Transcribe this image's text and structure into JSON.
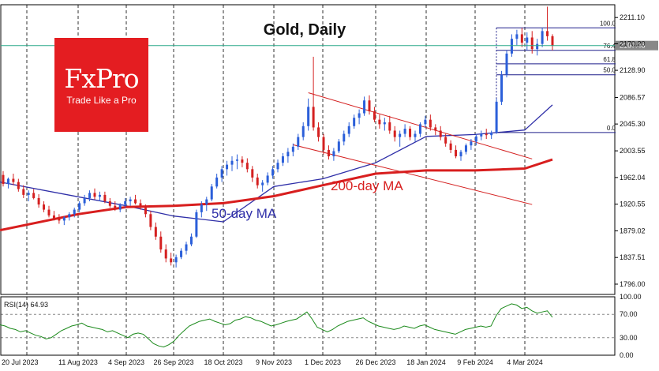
{
  "chart_data": [
    {
      "type": "candlestick",
      "title": "Gold, Daily",
      "y_ticks": [
        "2211.10",
        "2170.20",
        "2128.90",
        "2086.57",
        "2045.30",
        "2003.55",
        "1962.04",
        "1920.55",
        "1879.02",
        "1837.51",
        "1796.00"
      ],
      "ylim": [
        1780,
        2231
      ],
      "x_ticks": [
        "20 Jul 2023",
        "11 Aug 2023",
        "4 Sep 2023",
        "26 Sep 2023",
        "18 Oct 2023",
        "9 Nov 2023",
        "1 Dec 2023",
        "26 Dec 2023",
        "18 Jan 2024",
        "9 Feb 2024",
        "4 Mar 2024"
      ],
      "current_price": "2167.48",
      "grid": true,
      "series": [
        {
          "name": "50-day MA",
          "color": "#2f2fa8",
          "x": [
            "20 Jul 2023",
            "11 Aug 2023",
            "4 Sep 2023",
            "26 Sep 2023",
            "18 Oct 2023",
            "9 Nov 2023",
            "1 Dec 2023",
            "26 Dec 2023",
            "18 Jan 2024",
            "9 Feb 2024",
            "4 Mar 2024",
            "18 Mar 2024"
          ],
          "y": [
            1955,
            1932,
            1918,
            1902,
            1893,
            1948,
            1960,
            1985,
            2026,
            2029,
            2036,
            2075
          ]
        },
        {
          "name": "200-day MA",
          "color": "#d81e1e",
          "x": [
            "20 Jul 2023",
            "11 Aug 2023",
            "4 Sep 2023",
            "26 Sep 2023",
            "18 Oct 2023",
            "9 Nov 2023",
            "1 Dec 2023",
            "26 Dec 2023",
            "18 Jan 2024",
            "9 Feb 2024",
            "4 Mar 2024",
            "18 Mar 2024"
          ],
          "y": [
            1880,
            1905,
            1916,
            1918,
            1922,
            1933,
            1950,
            1968,
            1973,
            1973,
            1976,
            1990
          ]
        }
      ],
      "candles": [
        [
          1966,
          1972,
          1948,
          1952
        ],
        [
          1952,
          1962,
          1945,
          1960
        ],
        [
          1960,
          1968,
          1950,
          1955
        ],
        [
          1955,
          1960,
          1940,
          1944
        ],
        [
          1944,
          1950,
          1930,
          1935
        ],
        [
          1935,
          1942,
          1925,
          1938
        ],
        [
          1938,
          1944,
          1928,
          1930
        ],
        [
          1930,
          1936,
          1915,
          1920
        ],
        [
          1920,
          1925,
          1908,
          1912
        ],
        [
          1912,
          1918,
          1900,
          1903
        ],
        [
          1903,
          1910,
          1895,
          1898
        ],
        [
          1898,
          1905,
          1890,
          1895
        ],
        [
          1895,
          1902,
          1888,
          1900
        ],
        [
          1900,
          1908,
          1895,
          1905
        ],
        [
          1905,
          1915,
          1900,
          1912
        ],
        [
          1912,
          1925,
          1908,
          1922
        ],
        [
          1922,
          1935,
          1918,
          1930
        ],
        [
          1930,
          1942,
          1925,
          1938
        ],
        [
          1938,
          1945,
          1928,
          1932
        ],
        [
          1932,
          1940,
          1925,
          1935
        ],
        [
          1935,
          1940,
          1922,
          1925
        ],
        [
          1925,
          1930,
          1915,
          1918
        ],
        [
          1918,
          1925,
          1910,
          1912
        ],
        [
          1912,
          1922,
          1908,
          1920
        ],
        [
          1920,
          1930,
          1915,
          1925
        ],
        [
          1925,
          1932,
          1918,
          1928
        ],
        [
          1928,
          1935,
          1920,
          1922
        ],
        [
          1922,
          1928,
          1912,
          1915
        ],
        [
          1915,
          1920,
          1900,
          1905
        ],
        [
          1905,
          1910,
          1880,
          1885
        ],
        [
          1885,
          1892,
          1865,
          1870
        ],
        [
          1870,
          1878,
          1845,
          1850
        ],
        [
          1850,
          1858,
          1830,
          1836
        ],
        [
          1836,
          1845,
          1825,
          1830
        ],
        [
          1830,
          1842,
          1822,
          1838
        ],
        [
          1838,
          1852,
          1835,
          1848
        ],
        [
          1848,
          1862,
          1842,
          1858
        ],
        [
          1858,
          1875,
          1855,
          1870
        ],
        [
          1870,
          1912,
          1868,
          1908
        ],
        [
          1908,
          1925,
          1900,
          1920
        ],
        [
          1920,
          1932,
          1910,
          1928
        ],
        [
          1928,
          1952,
          1925,
          1948
        ],
        [
          1948,
          1968,
          1945,
          1962
        ],
        [
          1962,
          1980,
          1955,
          1975
        ],
        [
          1975,
          1988,
          1965,
          1982
        ],
        [
          1982,
          1995,
          1972,
          1988
        ],
        [
          1988,
          1998,
          1975,
          1990
        ],
        [
          1990,
          1995,
          1978,
          1985
        ],
        [
          1985,
          1992,
          1970,
          1975
        ],
        [
          1975,
          1980,
          1955,
          1962
        ],
        [
          1962,
          1968,
          1945,
          1950
        ],
        [
          1950,
          1958,
          1940,
          1954
        ],
        [
          1954,
          1970,
          1950,
          1965
        ],
        [
          1965,
          1980,
          1960,
          1975
        ],
        [
          1975,
          1990,
          1970,
          1985
        ],
        [
          1985,
          2000,
          1980,
          1995
        ],
        [
          1995,
          2008,
          1985,
          2002
        ],
        [
          2002,
          2015,
          1995,
          2010
        ],
        [
          2010,
          2030,
          2005,
          2025
        ],
        [
          2025,
          2048,
          2020,
          2042
        ],
        [
          2042,
          2085,
          2035,
          2072
        ],
        [
          2072,
          2150,
          2035,
          2040
        ],
        [
          2040,
          2048,
          2018,
          2025
        ],
        [
          2025,
          2030,
          1998,
          2005
        ],
        [
          2005,
          2012,
          1990,
          1995
        ],
        [
          1995,
          2008,
          1988,
          2003
        ],
        [
          2003,
          2022,
          2000,
          2018
        ],
        [
          2018,
          2035,
          2012,
          2030
        ],
        [
          2030,
          2048,
          2025,
          2042
        ],
        [
          2042,
          2060,
          2038,
          2055
        ],
        [
          2055,
          2068,
          2045,
          2062
        ],
        [
          2062,
          2088,
          2058,
          2082
        ],
        [
          2082,
          2090,
          2060,
          2065
        ],
        [
          2065,
          2072,
          2048,
          2052
        ],
        [
          2052,
          2060,
          2038,
          2045
        ],
        [
          2045,
          2055,
          2035,
          2048
        ],
        [
          2048,
          2058,
          2030,
          2035
        ],
        [
          2035,
          2042,
          2018,
          2025
        ],
        [
          2025,
          2035,
          2010,
          2030
        ],
        [
          2030,
          2045,
          2025,
          2038
        ],
        [
          2038,
          2042,
          2020,
          2025
        ],
        [
          2025,
          2035,
          2018,
          2030
        ],
        [
          2030,
          2048,
          2025,
          2045
        ],
        [
          2045,
          2058,
          2040,
          2052
        ],
        [
          2052,
          2060,
          2035,
          2040
        ],
        [
          2040,
          2045,
          2028,
          2035
        ],
        [
          2035,
          2042,
          2020,
          2025
        ],
        [
          2025,
          2030,
          2010,
          2015
        ],
        [
          2015,
          2020,
          2000,
          2005
        ],
        [
          2005,
          2012,
          1992,
          1995
        ],
        [
          1995,
          2005,
          1988,
          2002
        ],
        [
          2002,
          2015,
          1998,
          2012
        ],
        [
          2012,
          2022,
          2005,
          2018
        ],
        [
          2018,
          2030,
          2012,
          2026
        ],
        [
          2026,
          2035,
          2020,
          2030
        ],
        [
          2030,
          2038,
          2022,
          2028
        ],
        [
          2028,
          2035,
          2022,
          2032
        ],
        [
          2032,
          2085,
          2030,
          2080
        ],
        [
          2080,
          2128,
          2075,
          2122
        ],
        [
          2122,
          2160,
          2118,
          2155
        ],
        [
          2155,
          2185,
          2150,
          2178
        ],
        [
          2178,
          2192,
          2168,
          2185
        ],
        [
          2185,
          2195,
          2165,
          2172
        ],
        [
          2172,
          2188,
          2160,
          2180
        ],
        [
          2180,
          2190,
          2155,
          2162
        ],
        [
          2162,
          2178,
          2152,
          2170
        ],
        [
          2170,
          2195,
          2165,
          2190
        ],
        [
          2190,
          2228,
          2175,
          2182
        ],
        [
          2182,
          2185,
          2160,
          2167
        ]
      ],
      "fibonacci": {
        "levels": [
          "100.0",
          "76.4",
          "61.8",
          "50.0",
          "0.0"
        ],
        "values": [
          2195,
          2160,
          2139,
          2122,
          2032
        ]
      },
      "channel": {
        "upper": [
          [
            60,
            2094
          ],
          [
            104,
            1991
          ]
        ],
        "lower": [
          [
            57,
            2013
          ],
          [
            104,
            1920
          ]
        ]
      },
      "annotations": [
        "50-day MA",
        "200-day MA"
      ]
    },
    {
      "type": "line",
      "title": "RSI(14) 64.93",
      "y_ticks": [
        "100.00",
        "70.00",
        "30.00",
        "0.00"
      ],
      "ylim": [
        0,
        100
      ],
      "levels": [
        70,
        30
      ],
      "series": [
        {
          "name": "RSI(14)",
          "color": "#1b8a1b",
          "values": [
            52,
            50,
            46,
            44,
            40,
            42,
            38,
            34,
            32,
            28,
            30,
            36,
            42,
            46,
            50,
            52,
            55,
            50,
            48,
            46,
            44,
            40,
            42,
            38,
            34,
            30,
            36,
            38,
            36,
            28,
            20,
            16,
            14,
            18,
            24,
            34,
            42,
            50,
            54,
            58,
            60,
            62,
            58,
            55,
            52,
            54,
            60,
            62,
            66,
            64,
            60,
            58,
            54,
            50,
            52,
            55,
            58,
            60,
            62,
            68,
            74,
            62,
            48,
            44,
            40,
            44,
            50,
            54,
            58,
            60,
            62,
            64,
            58,
            54,
            50,
            48,
            46,
            44,
            46,
            50,
            48,
            46,
            50,
            52,
            48,
            44,
            42,
            40,
            38,
            36,
            40,
            44,
            46,
            48,
            50,
            48,
            50,
            68,
            80,
            84,
            88,
            86,
            80,
            82,
            76,
            72,
            74,
            76,
            64.93
          ]
        }
      ]
    }
  ],
  "watermark": {
    "brand": "FxPro",
    "tagline": "Trade Like a Pro"
  },
  "colors": {
    "bull": "#2b5fd9",
    "bear": "#d42020",
    "ma50": "#2f2fa8",
    "ma200": "#d81e1e",
    "rsi": "#1b8a1b",
    "price_line": "#2aa88a",
    "fib": "#1f1f8a",
    "channel": "#d42020",
    "brand": "#e41d21"
  }
}
